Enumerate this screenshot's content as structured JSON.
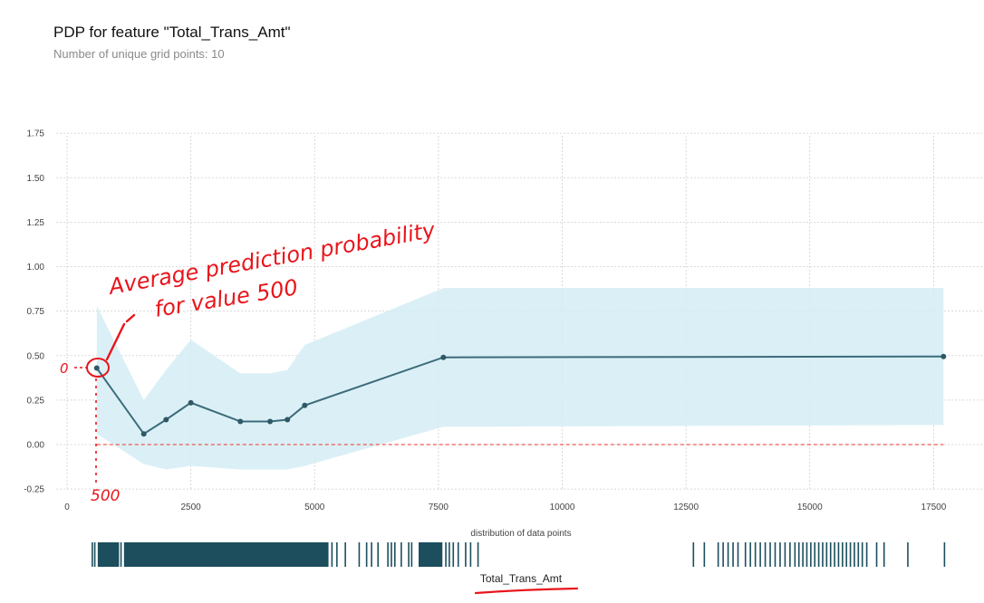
{
  "title": "PDP for feature \"Total_Trans_Amt\"",
  "subtitle": "Number of unique grid points: 10",
  "colors": {
    "line": "#3c6b7a",
    "band": "#d5edf5",
    "baseline": "#e8342f",
    "rug": "#1c4e5d",
    "annotation": "#e8151b"
  },
  "chart_data": {
    "type": "line",
    "xlabel": "Total_Trans_Amt",
    "ylabel": "",
    "xlim": [
      -200,
      18200
    ],
    "ylim": [
      -0.25,
      1.75
    ],
    "xticks": [
      0,
      2500,
      5000,
      7500,
      10000,
      12500,
      15000,
      17500
    ],
    "yticks": [
      -0.25,
      0.0,
      0.25,
      0.5,
      0.75,
      1.0,
      1.25,
      1.5,
      1.75
    ],
    "grid": true,
    "baseline_y": 0.0,
    "series": [
      {
        "x": [
          600,
          1550,
          2000,
          2500,
          3500,
          4100,
          4450,
          4800,
          7600,
          17700
        ],
        "y": [
          0.43,
          0.06,
          0.14,
          0.235,
          0.13,
          0.13,
          0.14,
          0.22,
          0.49,
          0.495
        ],
        "upper": [
          0.78,
          0.25,
          0.42,
          0.59,
          0.4,
          0.4,
          0.42,
          0.56,
          0.88,
          0.88
        ],
        "lower": [
          0.06,
          -0.11,
          -0.14,
          -0.12,
          -0.14,
          -0.14,
          -0.14,
          -0.12,
          0.1,
          0.11
        ]
      }
    ],
    "rug": {
      "title": "distribution of data points",
      "dense_ranges": [
        [
          620,
          1050
        ],
        [
          1150,
          5280
        ],
        [
          7100,
          7580
        ]
      ],
      "ticks": [
        510,
        560,
        1090,
        3050,
        3270,
        4400,
        5350,
        5450,
        5620,
        5900,
        6050,
        6150,
        6280,
        6480,
        6550,
        6620,
        6750,
        6900,
        6960,
        7650,
        7720,
        7800,
        7900,
        8050,
        8150,
        8300,
        12650,
        12870,
        13150,
        13250,
        13350,
        13450,
        13550,
        13700,
        13800,
        13900,
        14000,
        14100,
        14200,
        14300,
        14400,
        14500,
        14600,
        14700,
        14780,
        14860,
        14940,
        15020,
        15100,
        15180,
        15260,
        15340,
        15420,
        15500,
        15580,
        15660,
        15740,
        15820,
        15900,
        15980,
        16060,
        16150,
        16350,
        16500,
        16980,
        17720
      ]
    }
  },
  "annotations": {
    "line1": "Average prediction probability",
    "line2": "for value 500",
    "x_note": "500",
    "y_note": "0"
  }
}
